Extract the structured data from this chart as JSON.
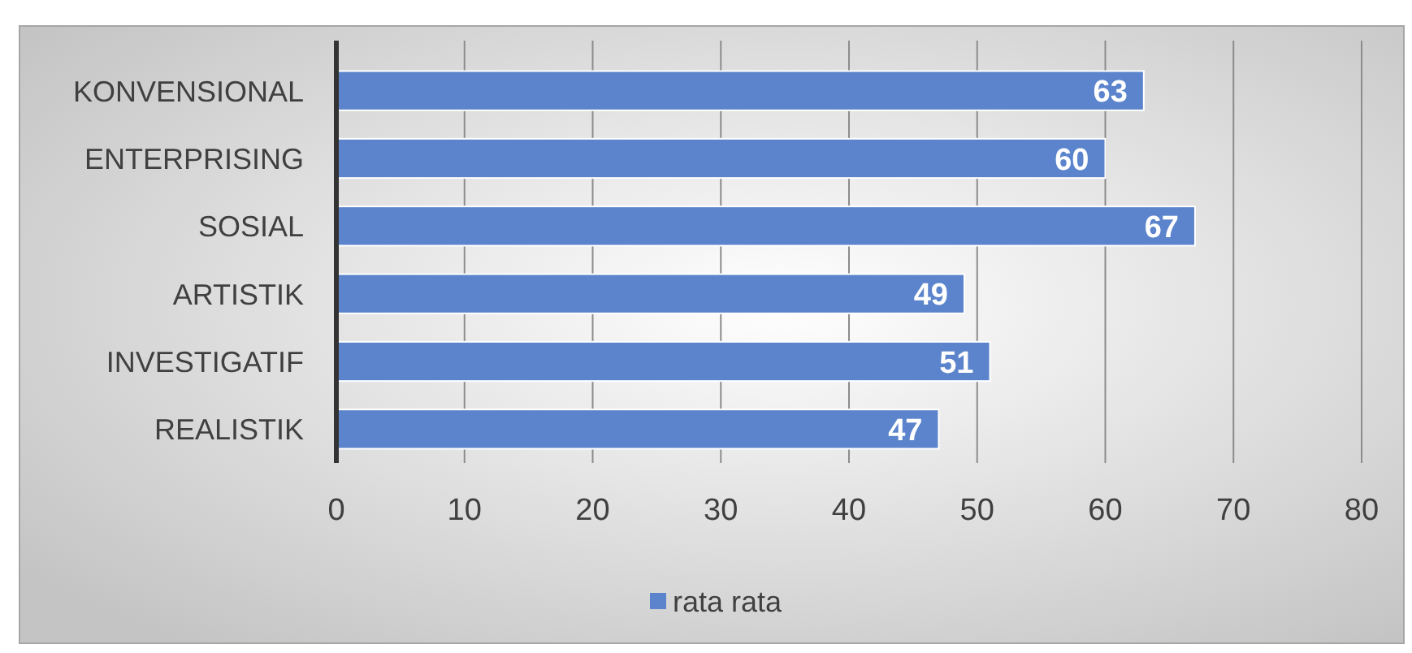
{
  "chart_data": {
    "type": "bar",
    "orientation": "horizontal",
    "categories": [
      "KONVENSIONAL",
      "ENTERPRISING",
      "SOSIAL",
      "ARTISTIK",
      "INVESTIGATIF",
      "REALISTIK"
    ],
    "series": [
      {
        "name": "rata rata",
        "color": "#5b84cc",
        "values": [
          63,
          60,
          67,
          49,
          51,
          47
        ]
      }
    ],
    "xlim": [
      0,
      80
    ],
    "xticks": [
      0,
      10,
      20,
      30,
      40,
      50,
      60,
      70,
      80
    ],
    "grid": "x",
    "legend": "bottom",
    "data_labels": true
  }
}
